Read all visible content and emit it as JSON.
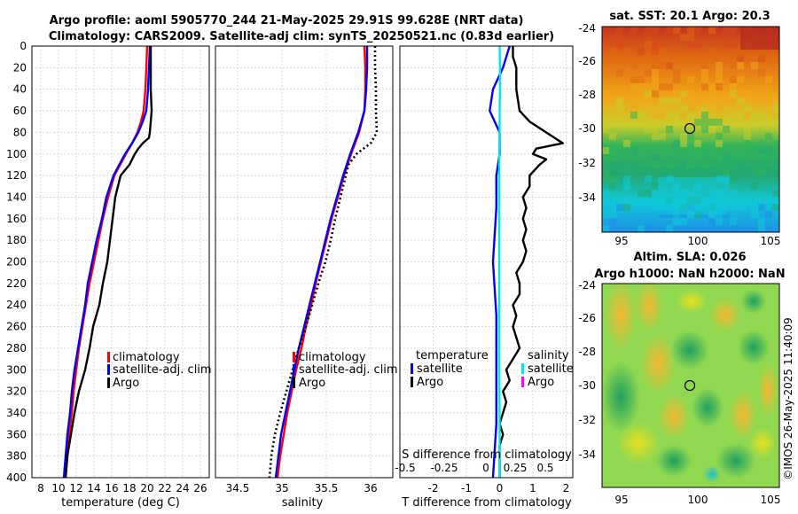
{
  "title": {
    "line1": "Argo profile: aoml 5905770_244 21-May-2025 29.91S 99.628E (NRT data)",
    "line2": "Climatology: CARS2009. Satellite-adj clim: synTS_20250521.nc (0.83d earlier)"
  },
  "colors": {
    "climatology": "#ff0000",
    "satellite": "#0000ff",
    "argo": "#000000",
    "sat_salinity": "#00e5ee",
    "argo_salinity": "#ff00ff"
  },
  "chart_data": [
    {
      "type": "line",
      "xlabel": "temperature (deg C)",
      "xlim": [
        7,
        27
      ],
      "xticks": [
        8,
        10,
        12,
        14,
        16,
        18,
        20,
        22,
        24,
        26
      ],
      "ylim": [
        0,
        400
      ],
      "yticks": [
        0,
        20,
        40,
        60,
        80,
        100,
        120,
        140,
        160,
        180,
        200,
        220,
        240,
        260,
        280,
        300,
        320,
        340,
        360,
        380,
        400
      ],
      "series": [
        {
          "name": "climatology",
          "style": "solid",
          "color": "#ff0000",
          "depth": [
            0,
            20,
            40,
            60,
            70,
            80,
            90,
            100,
            120,
            140,
            160,
            180,
            200,
            220,
            240,
            260,
            280,
            300,
            320,
            340,
            360,
            380,
            400
          ],
          "values": [
            20.0,
            19.9,
            19.8,
            19.6,
            19.3,
            18.9,
            18.3,
            17.6,
            16.3,
            15.6,
            15.0,
            14.5,
            14.0,
            13.5,
            13.1,
            12.7,
            12.3,
            12.0,
            11.7,
            11.5,
            11.2,
            11.0,
            10.8
          ]
        },
        {
          "name": "satellite-adj. clim",
          "style": "solid",
          "color": "#0000ff",
          "depth": [
            0,
            20,
            40,
            60,
            70,
            80,
            90,
            100,
            120,
            140,
            160,
            180,
            200,
            220,
            240,
            260,
            280,
            300,
            320,
            340,
            360,
            380,
            400
          ],
          "values": [
            20.3,
            20.2,
            20.1,
            19.9,
            19.5,
            19.0,
            18.3,
            17.5,
            16.2,
            15.4,
            14.9,
            14.3,
            13.8,
            13.3,
            13.0,
            12.6,
            12.2,
            11.8,
            11.5,
            11.3,
            11.0,
            10.8,
            10.6
          ]
        },
        {
          "name": "Argo",
          "style": "solid",
          "color": "#000000",
          "depth": [
            0,
            20,
            40,
            60,
            70,
            80,
            85,
            90,
            95,
            100,
            110,
            120,
            140,
            160,
            180,
            200,
            220,
            240,
            260,
            280,
            300,
            320,
            340,
            360,
            380,
            400
          ],
          "values": [
            20.4,
            20.4,
            20.4,
            20.5,
            20.4,
            20.3,
            20.2,
            19.5,
            19.0,
            18.6,
            18.0,
            17.0,
            16.4,
            16.1,
            15.8,
            15.5,
            15.0,
            14.6,
            13.9,
            13.5,
            13.0,
            12.3,
            11.8,
            11.4,
            11.0,
            10.8
          ]
        }
      ],
      "legend": [
        "climatology",
        "satellite-adj. clim",
        "Argo"
      ]
    },
    {
      "type": "line",
      "xlabel": "salinity",
      "xlim": [
        34.25,
        36.25
      ],
      "xticks": [
        34.5,
        35,
        35.5,
        36
      ],
      "ylim": [
        0,
        400
      ],
      "series": [
        {
          "name": "climatology",
          "style": "solid",
          "color": "#ff0000",
          "depth": [
            0,
            20,
            40,
            60,
            80,
            100,
            120,
            140,
            160,
            180,
            200,
            220,
            240,
            260,
            280,
            300,
            320,
            340,
            360,
            380,
            400
          ],
          "values": [
            35.93,
            35.94,
            35.94,
            35.93,
            35.87,
            35.78,
            35.7,
            35.63,
            35.56,
            35.5,
            35.44,
            35.38,
            35.33,
            35.27,
            35.22,
            35.16,
            35.11,
            35.06,
            35.02,
            34.98,
            34.95
          ]
        },
        {
          "name": "satellite-adj. clim",
          "style": "solid",
          "color": "#0000ff",
          "depth": [
            0,
            20,
            40,
            60,
            80,
            100,
            120,
            140,
            160,
            180,
            200,
            220,
            240,
            260,
            280,
            300,
            320,
            340,
            360,
            380,
            400
          ],
          "values": [
            35.96,
            35.96,
            35.95,
            35.93,
            35.86,
            35.77,
            35.69,
            35.62,
            35.55,
            35.49,
            35.43,
            35.37,
            35.31,
            35.25,
            35.19,
            35.14,
            35.09,
            35.04,
            34.99,
            34.96,
            34.93
          ]
        },
        {
          "name": "Argo",
          "style": "dotted",
          "color": "#000000",
          "depth": [
            0,
            20,
            40,
            60,
            80,
            90,
            100,
            110,
            120,
            140,
            160,
            180,
            200,
            220,
            240,
            260,
            280,
            300,
            320,
            340,
            360,
            380,
            400
          ],
          "values": [
            36.05,
            36.05,
            36.06,
            36.06,
            36.07,
            36.0,
            35.84,
            35.75,
            35.72,
            35.66,
            35.6,
            35.55,
            35.49,
            35.41,
            35.34,
            35.27,
            35.19,
            35.12,
            35.05,
            34.98,
            34.92,
            34.88,
            34.86
          ]
        }
      ],
      "legend": [
        "climatology",
        "satellite-adj. clim",
        "Argo"
      ]
    },
    {
      "type": "line",
      "xlabel": "T difference from climatology",
      "xlim": [
        -3,
        2.2
      ],
      "xticks": [
        -2,
        -1,
        0,
        1,
        2
      ],
      "top_label": "S difference from climatology",
      "top_ticks": [
        "-0.5",
        "-0.25",
        "0",
        "0.25",
        "0.5"
      ],
      "ylim": [
        0,
        400
      ],
      "series": [
        {
          "name": "temperature satellite",
          "style": "solid",
          "color": "#0000ff",
          "depth": [
            0,
            10,
            20,
            40,
            60,
            80,
            100,
            120,
            150,
            200,
            250,
            300,
            350,
            400
          ],
          "values": [
            0.3,
            0.2,
            0.1,
            -0.2,
            -0.3,
            0.0,
            0.0,
            -0.1,
            -0.1,
            -0.2,
            -0.1,
            -0.1,
            -0.1,
            -0.2
          ]
        },
        {
          "name": "temperature Argo",
          "style": "solid",
          "color": "#000000",
          "depth": [
            0,
            10,
            20,
            40,
            60,
            70,
            80,
            90,
            95,
            100,
            105,
            110,
            120,
            130,
            140,
            150,
            160,
            170,
            180,
            190,
            200,
            210,
            220,
            230,
            240,
            250,
            260,
            270,
            280,
            290,
            300,
            310,
            320,
            330,
            340,
            350,
            360,
            370,
            380,
            390,
            400
          ],
          "values": [
            0.4,
            0.4,
            0.5,
            0.5,
            0.6,
            0.9,
            1.4,
            1.9,
            1.1,
            1.0,
            1.4,
            1.2,
            0.9,
            0.9,
            0.7,
            0.8,
            0.7,
            0.8,
            0.7,
            0.8,
            0.7,
            0.5,
            0.6,
            0.6,
            0.4,
            0.5,
            0.4,
            0.5,
            0.6,
            0.4,
            0.2,
            0.3,
            0.1,
            0.2,
            0.1,
            0.0,
            0.1,
            0.0,
            0.0,
            0.0,
            0.0
          ]
        },
        {
          "name": "salinity satellite",
          "style": "solid",
          "color": "#00e5ee",
          "depth": [
            0,
            20,
            40,
            60,
            80,
            100,
            150,
            200,
            250,
            300,
            350,
            400
          ],
          "values": [
            0.0,
            0.01,
            0.01,
            0.0,
            0.0,
            -0.01,
            -0.01,
            -0.01,
            -0.01,
            -0.01,
            0.0,
            0.0
          ]
        }
      ],
      "legend_left": {
        "title": "temperature",
        "items": [
          "satellite",
          "Argo"
        ]
      },
      "legend_right": {
        "title": "salinity",
        "items": [
          "satellite",
          "Argo"
        ]
      }
    }
  ],
  "map_sst": {
    "title": "sat. SST: 20.1 Argo: 20.3",
    "yticks": [
      "-24",
      "-26",
      "-28",
      "-30",
      "-32",
      "-34"
    ],
    "xticks": [
      "95",
      "100",
      "105"
    ]
  },
  "map_sla": {
    "title_line1": "Altim. SLA: 0.026",
    "title_line2": "Argo h1000: NaN h2000: NaN",
    "yticks": [
      "-24",
      "-26",
      "-28",
      "-30",
      "-32",
      "-34"
    ],
    "xticks": [
      "95",
      "100",
      "105"
    ]
  },
  "copyright": "©IMOS 26-May-2025 11:40:09"
}
